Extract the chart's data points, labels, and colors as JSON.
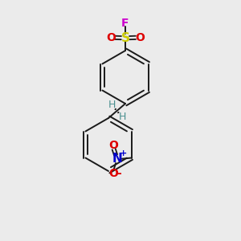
{
  "background_color": "#ebebeb",
  "bond_color": "#1a1a1a",
  "F_color": "#cc00cc",
  "S_color": "#cccc00",
  "O_color": "#dd0000",
  "N_color": "#0000cc",
  "H_color": "#4a9090",
  "figsize": [
    3.0,
    3.0
  ],
  "dpi": 100,
  "xlim": [
    0,
    10
  ],
  "ylim": [
    0,
    10
  ]
}
